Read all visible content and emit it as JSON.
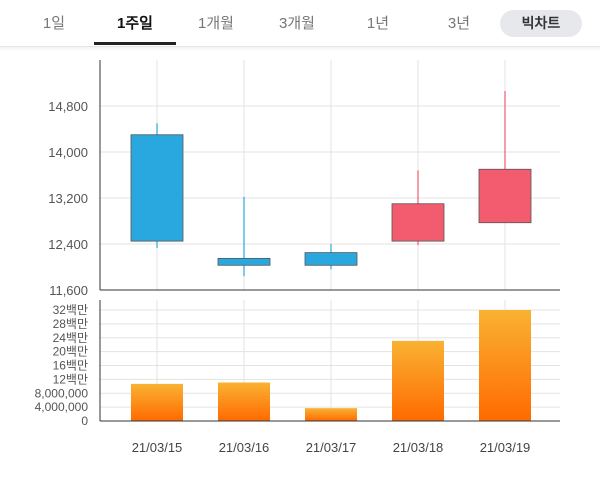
{
  "tabs": [
    {
      "label": "1일",
      "active": false
    },
    {
      "label": "1주일",
      "active": true
    },
    {
      "label": "1개월",
      "active": false
    },
    {
      "label": "3개월",
      "active": false
    },
    {
      "label": "1년",
      "active": false
    },
    {
      "label": "3년",
      "active": false
    }
  ],
  "bigchart_label": "빅차트",
  "chart_data": [
    {
      "type": "candlestick",
      "title": "",
      "xlabel": "",
      "ylabel": "",
      "categories": [
        "21/03/15",
        "21/03/16",
        "21/03/17",
        "21/03/18",
        "21/03/19"
      ],
      "ylim": [
        11600,
        15200
      ],
      "yticks": [
        "14,800",
        "14,000",
        "13,200",
        "12,400",
        "11,600"
      ],
      "grid": true,
      "series": [
        {
          "open": 12450,
          "high": 14500,
          "low": 12330,
          "close": 14300,
          "color": "#29a8e0"
        },
        {
          "open": 12150,
          "high": 13220,
          "low": 11840,
          "close": 12030,
          "color": "#29a8e0"
        },
        {
          "open": 12250,
          "high": 12400,
          "low": 11960,
          "close": 12030,
          "color": "#29a8e0"
        },
        {
          "open": 12450,
          "high": 13680,
          "low": 12380,
          "close": 13100,
          "color": "#f25c6e"
        },
        {
          "open": 12770,
          "high": 15060,
          "low": 12770,
          "close": 13700,
          "color": "#f25c6e"
        }
      ]
    },
    {
      "type": "bar",
      "title": "",
      "xlabel": "",
      "ylabel": "",
      "categories": [
        "21/03/15",
        "21/03/16",
        "21/03/17",
        "21/03/18",
        "21/03/19"
      ],
      "values": [
        10700000,
        11100000,
        3700000,
        23100000,
        32000000
      ],
      "ylim": [
        0,
        33000000
      ],
      "yticks": [
        "32백만",
        "28백만",
        "24백만",
        "20백만",
        "16백만",
        "12백만",
        "8,000,000",
        "4,000,000",
        "0"
      ],
      "grid": true,
      "bar_color_top": "#f9b233",
      "bar_color_bottom": "#ff6a00"
    }
  ]
}
